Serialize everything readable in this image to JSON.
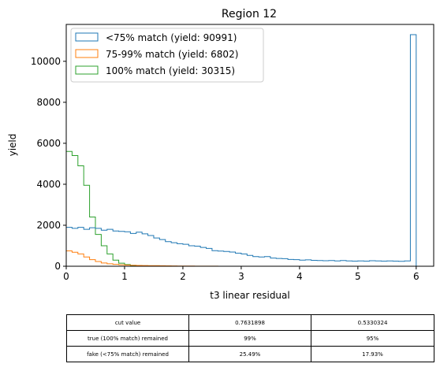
{
  "chart_data": {
    "type": "histogram",
    "title": "Region 12",
    "xlabel": "t3 linear residual",
    "ylabel": "yield",
    "xlim": [
      0,
      6.3
    ],
    "ylim": [
      0,
      11800
    ],
    "x_ticks": [
      "0",
      "1",
      "2",
      "3",
      "4",
      "5",
      "6"
    ],
    "y_ticks": [
      "0",
      "2000",
      "4000",
      "6000",
      "8000",
      "10000"
    ],
    "grid": false,
    "legend_position": "top-left",
    "bin_edges": [
      0.0,
      0.1,
      0.2,
      0.3,
      0.4,
      0.5,
      0.6,
      0.7,
      0.8,
      0.9,
      1.0,
      1.1,
      1.2,
      1.3,
      1.4,
      1.5,
      1.6,
      1.7,
      1.8,
      1.9,
      2.0,
      2.1,
      2.2,
      2.3,
      2.4,
      2.5,
      2.6,
      2.7,
      2.8,
      2.9,
      3.0,
      3.1,
      3.2,
      3.3,
      3.4,
      3.5,
      3.6,
      3.7,
      3.8,
      3.9,
      4.0,
      4.1,
      4.2,
      4.3,
      4.4,
      4.5,
      4.6,
      4.7,
      4.8,
      4.9,
      5.0,
      5.1,
      5.2,
      5.3,
      5.4,
      5.5,
      5.6,
      5.7,
      5.8,
      5.9,
      6.0
    ],
    "series": [
      {
        "name": "<75% match (yield: 90991)",
        "color": "#1f77b4",
        "values": [
          1900,
          1850,
          1900,
          1800,
          1880,
          1850,
          1760,
          1800,
          1720,
          1700,
          1680,
          1600,
          1660,
          1580,
          1500,
          1380,
          1300,
          1200,
          1150,
          1100,
          1070,
          1000,
          980,
          920,
          870,
          760,
          740,
          720,
          690,
          640,
          600,
          530,
          470,
          450,
          470,
          400,
          380,
          370,
          330,
          320,
          300,
          310,
          290,
          280,
          270,
          280,
          260,
          280,
          260,
          250,
          260,
          250,
          270,
          260,
          250,
          260,
          250,
          240,
          260,
          11300
        ]
      },
      {
        "name": "75-99% match (yield: 6802)",
        "color": "#ff7f0e",
        "values": [
          750,
          680,
          600,
          450,
          320,
          230,
          160,
          120,
          90,
          70,
          60,
          50,
          40,
          35,
          30,
          30,
          25,
          20,
          15,
          12,
          10,
          8,
          6,
          5,
          4,
          3,
          2,
          2,
          1,
          1,
          0,
          0,
          0,
          0,
          0,
          0,
          0,
          0,
          0,
          0,
          0,
          0,
          0,
          0,
          0,
          0,
          0,
          0,
          0,
          0,
          0,
          0,
          0,
          0,
          0,
          0,
          0,
          0,
          0,
          0
        ]
      },
      {
        "name": "100% match (yield: 30315)",
        "color": "#2ca02c",
        "values": [
          5600,
          5400,
          4900,
          3950,
          2400,
          1550,
          1000,
          600,
          300,
          150,
          80,
          40,
          20,
          10,
          5,
          2,
          1,
          0,
          0,
          0,
          0,
          0,
          0,
          0,
          0,
          0,
          0,
          0,
          0,
          0,
          0,
          0,
          0,
          0,
          0,
          0,
          0,
          0,
          0,
          0,
          0,
          0,
          0,
          0,
          0,
          0,
          0,
          0,
          0,
          0,
          0,
          0,
          0,
          0,
          0,
          0,
          0,
          0,
          0,
          0
        ]
      }
    ]
  },
  "table": {
    "rows": [
      [
        "cut value",
        "0.7631898",
        "0.5330324"
      ],
      [
        "true (100% match) remained",
        "99%",
        "95%"
      ],
      [
        "fake (<75% match) remained",
        "25.49%",
        "17.93%"
      ]
    ]
  }
}
